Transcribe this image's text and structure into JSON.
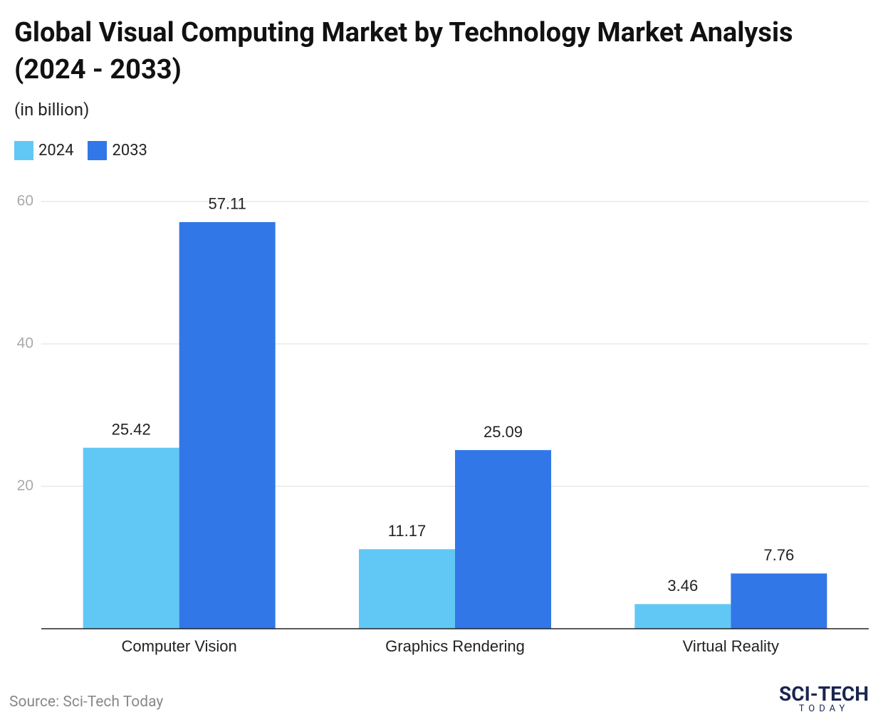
{
  "chart_data": {
    "type": "bar",
    "title": "Global Visual Computing Market by Technology Market Analysis (2024 - 2033)",
    "subtitle": "(in billion)",
    "categories": [
      "Computer Vision",
      "Graphics Rendering",
      "Virtual Reality"
    ],
    "series": [
      {
        "name": "2024",
        "color": "#61c8f6",
        "values": [
          25.42,
          11.17,
          3.46
        ]
      },
      {
        "name": "2033",
        "color": "#3277e8",
        "values": [
          57.11,
          25.09,
          7.76
        ]
      }
    ],
    "ylim": [
      0,
      60
    ],
    "yticks": [
      20,
      40,
      60
    ],
    "grid": true,
    "legend": "top-left",
    "source": "Source: Sci-Tech Today",
    "logo": {
      "name": "SCI-TECH",
      "tagline": "TODAY"
    }
  }
}
